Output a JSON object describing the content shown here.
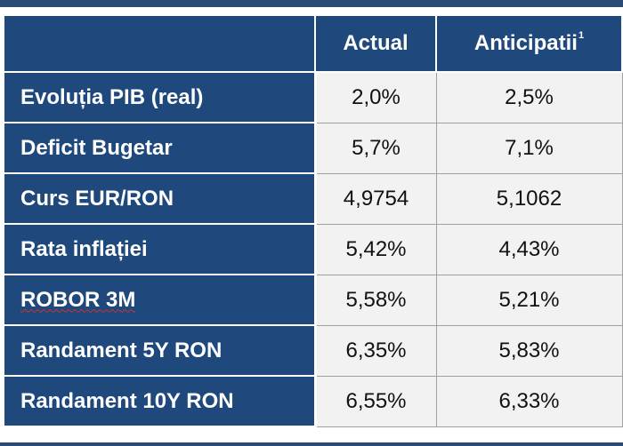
{
  "table": {
    "headers": {
      "corner": "",
      "actual": "Actual",
      "anticipated": "Anticipatii",
      "anticipated_footnote": "1"
    },
    "rows": [
      {
        "label": "Evoluția PIB (real)",
        "actual": "2,0%",
        "anticipated": "2,5%"
      },
      {
        "label": "Deficit Bugetar",
        "actual": "5,7%",
        "anticipated": "7,1%"
      },
      {
        "label": "Curs EUR/RON",
        "actual": "4,9754",
        "anticipated": "5,1062"
      },
      {
        "label": "Rata inflației",
        "actual": "5,42%",
        "anticipated": "4,43%"
      },
      {
        "label": "ROBOR 3M",
        "actual": "5,58%",
        "anticipated": "5,21%"
      },
      {
        "label": "Randament 5Y RON",
        "actual": "6,35%",
        "anticipated": "5,83%"
      },
      {
        "label": "Randament 10Y RON",
        "actual": "6,55%",
        "anticipated": "6,33%"
      }
    ]
  },
  "colors": {
    "header_bg": "#1f497d",
    "header_text": "#ffffff",
    "cell_bg": "#f2f2f2",
    "spellcheck_underline": "#d03030"
  }
}
